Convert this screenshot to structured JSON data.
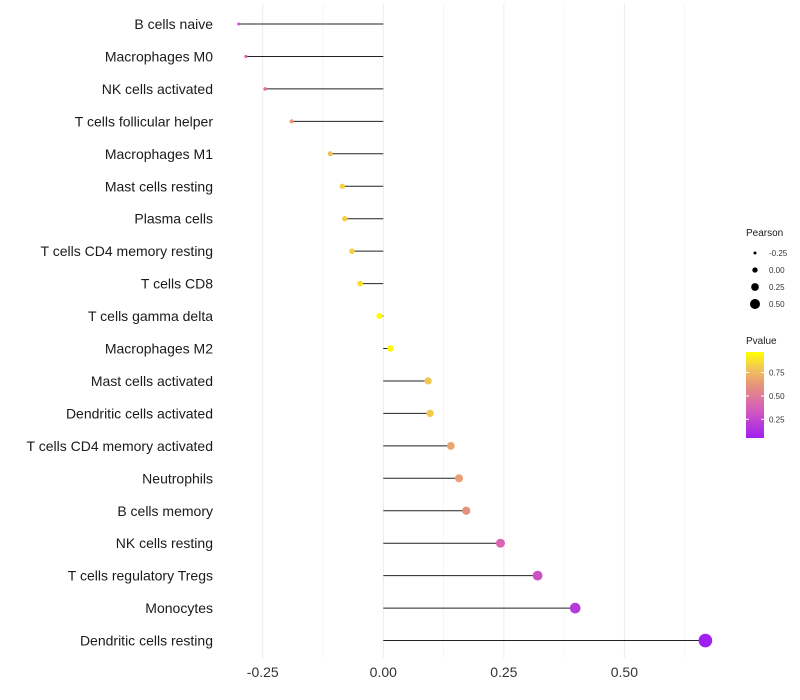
{
  "chart_data": {
    "type": "lollipop",
    "orientation": "horizontal",
    "categories": [
      "B cells naive",
      "Macrophages M0",
      "NK cells activated",
      "T cells follicular helper",
      "Macrophages M1",
      "Mast cells resting",
      "Plasma cells",
      "T cells CD4 memory resting",
      "T cells CD8",
      "T cells gamma delta",
      "Macrophages M2",
      "Mast cells activated",
      "Dendritic cells activated",
      "T cells CD4 memory activated",
      "Neutrophils",
      "B cells memory",
      "NK cells resting",
      "T cells regulatory  Tregs",
      "Monocytes",
      "Dendritic cells resting"
    ],
    "pearson": [
      -0.3,
      -0.285,
      -0.245,
      -0.19,
      -0.11,
      -0.085,
      -0.08,
      -0.065,
      -0.048,
      -0.008,
      0.015,
      0.093,
      0.097,
      0.14,
      0.157,
      0.172,
      0.243,
      0.32,
      0.398,
      0.668
    ],
    "pvalue": [
      0.3,
      0.4,
      0.45,
      0.62,
      0.78,
      0.83,
      0.82,
      0.83,
      0.87,
      0.97,
      0.97,
      0.8,
      0.81,
      0.68,
      0.65,
      0.6,
      0.4,
      0.3,
      0.18,
      0.05
    ],
    "xlim": [
      -0.32,
      0.69
    ],
    "x_ticks": [
      -0.25,
      0.0,
      0.25,
      0.5
    ],
    "x_tick_labels": [
      "-0.25",
      "0.00",
      "0.25",
      "0.50"
    ],
    "xlabel": "",
    "ylabel": "",
    "grid": true,
    "legend": {
      "position": "right",
      "size_title": "Pearson",
      "size_values": [
        -0.25,
        0.0,
        0.25,
        0.5
      ],
      "size_labels": [
        "-0.25",
        "0.00",
        "0.25",
        "0.50"
      ],
      "color_title": "Pvalue",
      "color_ticks": [
        0.25,
        0.5,
        0.75
      ],
      "color_tick_labels": [
        "0.25",
        "0.50",
        "0.75"
      ],
      "color_range": [
        0.05,
        0.97
      ],
      "color_low": "#a020f0",
      "color_high": "#ffff00"
    }
  }
}
